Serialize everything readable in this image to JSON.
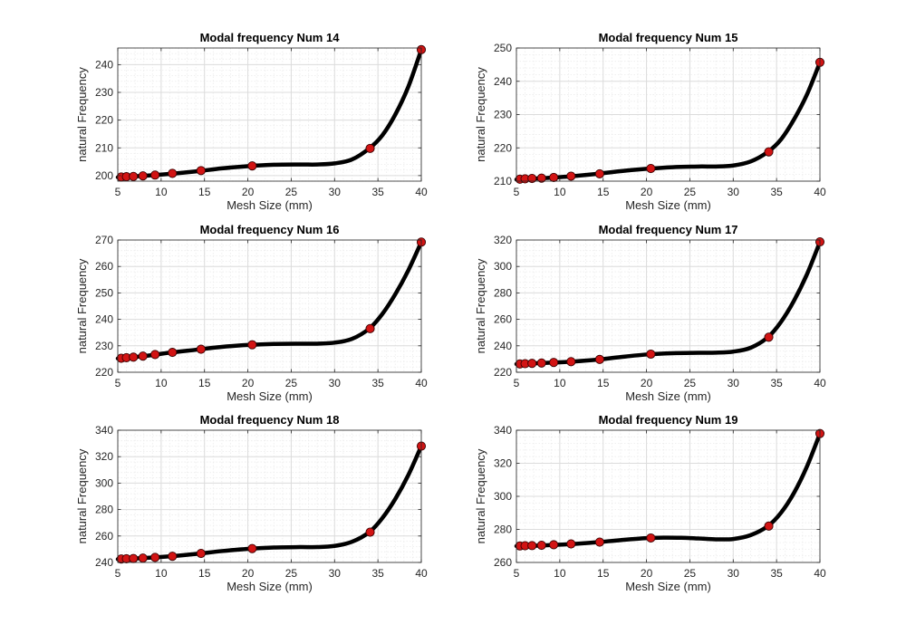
{
  "colors": {
    "line": "#000000",
    "marker_fill": "#d21414",
    "marker_edge": "#3a0000",
    "grid_major": "#dcdcdc",
    "grid_minor": "#ebebeb",
    "axes_edge": "#262626"
  },
  "chart_data": [
    {
      "type": "line",
      "title": "Modal frequency Num 14",
      "xlabel": "Mesh Size (mm)",
      "ylabel": "natural Frequency",
      "xlim": [
        5,
        40
      ],
      "ylim": [
        198,
        246
      ],
      "xticks": [
        5,
        10,
        15,
        20,
        25,
        30,
        35,
        40
      ],
      "yticks": [
        200,
        210,
        220,
        230,
        240
      ],
      "grid": "major and minor",
      "x": [
        5.4,
        6.0,
        6.8,
        7.9,
        9.3,
        11.3,
        14.6,
        20.5,
        34.1,
        40.0
      ],
      "values": [
        199.5,
        199.6,
        199.7,
        199.9,
        200.2,
        200.8,
        201.8,
        203.5,
        209.8,
        245.4
      ],
      "curve_x": [
        5,
        8,
        11,
        14,
        17,
        20,
        23,
        26,
        28,
        30,
        32,
        34,
        35.5,
        37,
        38.5,
        40
      ],
      "curve_y": [
        199.4,
        199.9,
        200.6,
        201.5,
        202.6,
        203.4,
        203.9,
        204.0,
        204.0,
        204.4,
        205.8,
        209.8,
        214.5,
        222.0,
        232.0,
        245.4
      ]
    },
    {
      "type": "line",
      "title": "Modal frequency Num 15",
      "xlabel": "Mesh Size (mm)",
      "ylabel": "natural Frequency",
      "xlim": [
        5,
        40
      ],
      "ylim": [
        210,
        250
      ],
      "xticks": [
        5,
        10,
        15,
        20,
        25,
        30,
        35,
        40
      ],
      "yticks": [
        210,
        220,
        230,
        240,
        250
      ],
      "grid": "major and minor",
      "x": [
        5.4,
        6.0,
        6.8,
        7.9,
        9.3,
        11.3,
        14.6,
        20.5,
        34.1,
        40.0
      ],
      "values": [
        210.6,
        210.7,
        210.8,
        210.9,
        211.1,
        211.5,
        212.2,
        213.8,
        218.8,
        245.7
      ],
      "curve_x": [
        5,
        8,
        11,
        14,
        17,
        20,
        23,
        26,
        28,
        30,
        32,
        34,
        35.5,
        37,
        38.5,
        40
      ],
      "curve_y": [
        210.5,
        210.9,
        211.4,
        212.1,
        213.0,
        213.7,
        214.2,
        214.4,
        214.4,
        214.7,
        215.9,
        218.8,
        222.5,
        228.5,
        236.0,
        245.7
      ]
    },
    {
      "type": "line",
      "title": "Modal frequency Num 16",
      "xlabel": "Mesh Size (mm)",
      "ylabel": "natural Frequency",
      "xlim": [
        5,
        40
      ],
      "ylim": [
        220,
        270
      ],
      "xticks": [
        5,
        10,
        15,
        20,
        25,
        30,
        35,
        40
      ],
      "yticks": [
        220,
        230,
        240,
        250,
        260,
        270
      ],
      "grid": "major and minor",
      "x": [
        5.4,
        6.0,
        6.8,
        7.9,
        9.3,
        11.3,
        14.6,
        20.5,
        34.1,
        40.0
      ],
      "values": [
        225.3,
        225.5,
        225.7,
        226.1,
        226.7,
        227.5,
        228.7,
        230.4,
        236.5,
        269.2
      ],
      "curve_x": [
        5,
        8,
        11,
        14,
        17,
        20,
        23,
        26,
        28,
        30,
        32,
        34,
        35.5,
        37,
        38.5,
        40
      ],
      "curve_y": [
        225.2,
        226.1,
        227.4,
        228.5,
        229.6,
        230.3,
        230.7,
        230.8,
        230.8,
        231.2,
        232.6,
        236.5,
        242.0,
        249.5,
        258.5,
        269.2
      ]
    },
    {
      "type": "line",
      "title": "Modal frequency Num 17",
      "xlabel": "Mesh Size (mm)",
      "ylabel": "natural Frequency",
      "xlim": [
        5,
        40
      ],
      "ylim": [
        220,
        320
      ],
      "xticks": [
        5,
        10,
        15,
        20,
        25,
        30,
        35,
        40
      ],
      "yticks": [
        220,
        240,
        260,
        280,
        300,
        320
      ],
      "grid": "major and minor",
      "x": [
        5.4,
        6.0,
        6.8,
        7.9,
        9.3,
        11.3,
        14.6,
        20.5,
        34.1,
        40.0
      ],
      "values": [
        226.3,
        226.5,
        226.7,
        227.0,
        227.4,
        228.0,
        229.7,
        233.7,
        246.5,
        318.6
      ],
      "curve_x": [
        5,
        8,
        11,
        14,
        17,
        20,
        23,
        26,
        28,
        30,
        32,
        34,
        35.5,
        37,
        38.5,
        40
      ],
      "curve_y": [
        226.2,
        227.0,
        227.9,
        229.3,
        231.5,
        233.4,
        234.4,
        234.7,
        234.8,
        235.6,
        238.5,
        246.5,
        258.0,
        274.0,
        294.0,
        318.6
      ]
    },
    {
      "type": "line",
      "title": "Modal frequency Num 18",
      "xlabel": "Mesh Size (mm)",
      "ylabel": "natural Frequency",
      "xlim": [
        5,
        40
      ],
      "ylim": [
        240,
        340
      ],
      "xticks": [
        5,
        10,
        15,
        20,
        25,
        30,
        35,
        40
      ],
      "yticks": [
        240,
        260,
        280,
        300,
        320,
        340
      ],
      "grid": "major and minor",
      "x": [
        5.4,
        6.0,
        6.8,
        7.9,
        9.3,
        11.3,
        14.6,
        20.5,
        34.1,
        40.0
      ],
      "values": [
        242.6,
        242.8,
        243.0,
        243.3,
        243.8,
        244.7,
        246.8,
        250.5,
        262.9,
        328.0
      ],
      "curve_x": [
        5,
        8,
        11,
        14,
        17,
        20,
        23,
        26,
        28,
        30,
        32,
        34,
        35.5,
        37,
        38.5,
        40
      ],
      "curve_y": [
        242.5,
        243.3,
        244.6,
        246.4,
        248.6,
        250.3,
        251.3,
        251.6,
        251.6,
        252.5,
        255.6,
        262.9,
        273.5,
        288.0,
        306.0,
        328.0
      ]
    },
    {
      "type": "line",
      "title": "Modal frequency Num 19",
      "xlabel": "Mesh Size (mm)",
      "ylabel": "natural Frequency",
      "xlim": [
        5,
        40
      ],
      "ylim": [
        260,
        340
      ],
      "xticks": [
        5,
        10,
        15,
        20,
        25,
        30,
        35,
        40
      ],
      "yticks": [
        260,
        280,
        300,
        320,
        340
      ],
      "grid": "major and minor",
      "x": [
        5.4,
        6.0,
        6.8,
        7.9,
        9.3,
        11.3,
        14.6,
        20.5,
        34.1,
        40.0
      ],
      "values": [
        270.0,
        270.1,
        270.2,
        270.4,
        270.7,
        271.2,
        272.3,
        274.8,
        282.0,
        338.0
      ],
      "curve_x": [
        5,
        8,
        11,
        14,
        17,
        20,
        22,
        24,
        26,
        28,
        30,
        32,
        34,
        35.5,
        37,
        38.5,
        40
      ],
      "curve_y": [
        269.9,
        270.3,
        271.0,
        272.1,
        273.5,
        274.7,
        275.0,
        274.9,
        274.5,
        274.0,
        274.2,
        276.5,
        282.0,
        290.0,
        302.0,
        318.0,
        338.0
      ]
    }
  ]
}
